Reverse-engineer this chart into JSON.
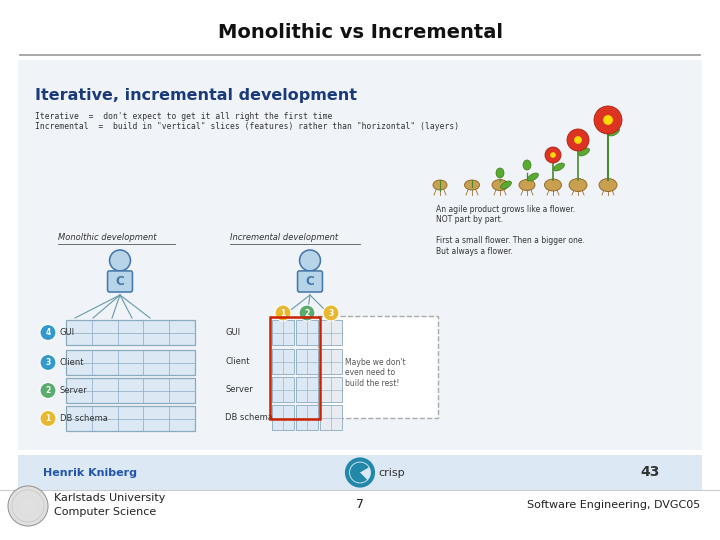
{
  "title": "Monolithic vs Incremental",
  "title_fontsize": 14,
  "title_fontweight": "bold",
  "title_color": "#111111",
  "background_color": "#ffffff",
  "footer_left_line1": "Karlstads University",
  "footer_left_line2": "Computer Science",
  "footer_center": "7",
  "footer_right": "Software Engineering, DVGC05",
  "footer_fontsize": 8,
  "footer_color": "#222222",
  "divider_color": "#999999",
  "content_bg_color": "#f8f8f8",
  "inner_bg_color": "#ffffff",
  "title_blue": "#1a3a7a",
  "person_fill": "#b8d4e8",
  "person_edge": "#4477aa",
  "layer_fill": "#dce8f4",
  "layer_edge": "#8aaabf",
  "badge_colors": [
    "#e8b830",
    "#5aab6e",
    "#e8b830"
  ],
  "num_badge_colors": [
    "#e8b830",
    "#5aab6e",
    "#3399cc",
    "#3399cc"
  ],
  "red_border": "#cc2200",
  "dashed_edge": "#aaaaaa",
  "henrik_color": "#2255aa",
  "bottom_bg": "#dce8f4",
  "slide_inner_bg": "#f0f4f8"
}
